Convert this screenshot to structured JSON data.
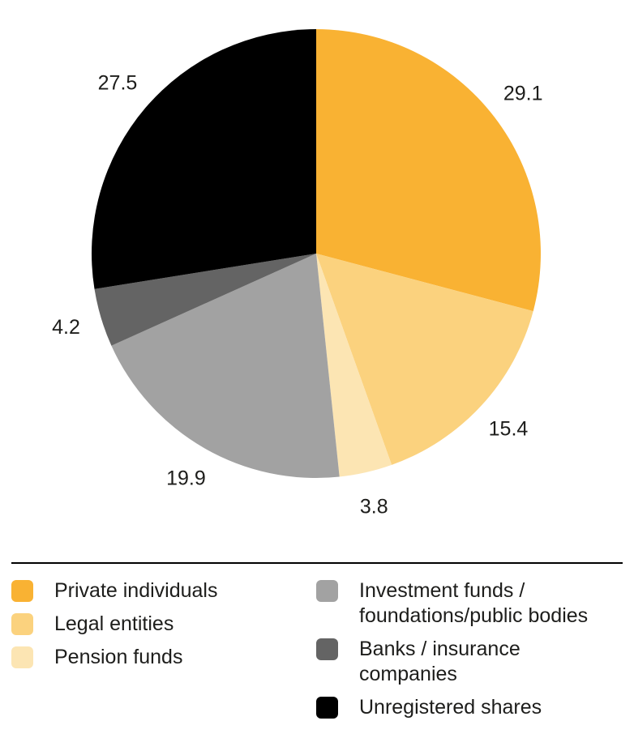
{
  "chart_data": {
    "type": "pie",
    "title": "",
    "unit": "percent",
    "start_angle_deg_from_top": 0,
    "direction": "clockwise",
    "legend_position": "bottom",
    "legend_columns": 2,
    "text_color": "#1d1d1b",
    "slices": [
      {
        "label": "Private individuals",
        "value": 29.1,
        "color": "#F9B233",
        "legend_lines": [
          "Private individuals"
        ],
        "legend_column": 0
      },
      {
        "label": "Legal entities",
        "value": 15.4,
        "color": "#FBD27E",
        "legend_lines": [
          "Legal entities"
        ],
        "legend_column": 0
      },
      {
        "label": "Pension funds",
        "value": 3.8,
        "color": "#FCE5B3",
        "legend_lines": [
          "Pension funds"
        ],
        "legend_column": 0
      },
      {
        "label": "Investment funds / foundations/public bodies",
        "value": 19.9,
        "color": "#A2A2A2",
        "legend_lines": [
          "Investment funds /",
          "foundations/public bodies"
        ],
        "legend_column": 1
      },
      {
        "label": "Banks / insurance companies",
        "value": 4.2,
        "color": "#646464",
        "legend_lines": [
          "Banks / insurance",
          "companies"
        ],
        "legend_column": 1
      },
      {
        "label": "Unregistered shares",
        "value": 27.5,
        "color": "#000000",
        "legend_lines": [
          "Unregistered shares"
        ],
        "legend_column": 1
      }
    ],
    "value_labels": [
      "29.1",
      "15.4",
      "3.8",
      "19.9",
      "4.2",
      "27.5"
    ]
  },
  "layout_meta": {}
}
